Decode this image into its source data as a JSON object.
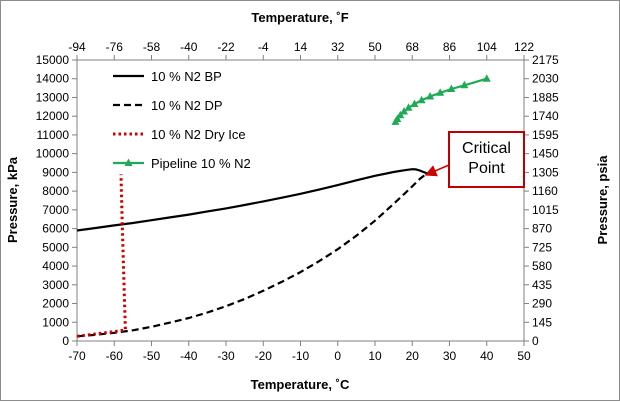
{
  "chart_data": {
    "type": "line",
    "x_bottom": {
      "label": "Temperature, ˚C",
      "range": [
        -70,
        50
      ],
      "ticks": [
        -70,
        -60,
        -50,
        -40,
        -30,
        -20,
        -10,
        0,
        10,
        20,
        30,
        40,
        50
      ]
    },
    "x_top": {
      "label": "Temperature, ˚F",
      "range": [
        -94,
        122
      ],
      "ticks": [
        -94,
        -76,
        -58,
        -40,
        -22,
        -4,
        14,
        32,
        50,
        68,
        86,
        104,
        122
      ]
    },
    "y_left": {
      "label": "Pressure, kPa",
      "range": [
        0,
        15000
      ],
      "ticks": [
        0,
        1000,
        2000,
        3000,
        4000,
        5000,
        6000,
        7000,
        8000,
        9000,
        10000,
        11000,
        12000,
        13000,
        14000,
        15000
      ]
    },
    "y_right": {
      "label": "Pressure, psia",
      "range": [
        0,
        2175
      ],
      "ticks": [
        0,
        145,
        290,
        435,
        580,
        725,
        870,
        1015,
        1160,
        1305,
        1450,
        1595,
        1740,
        1885,
        2030,
        2175
      ]
    },
    "grid": false,
    "legend_position": "top-left",
    "series": [
      {
        "name": "10 % N2 BP",
        "color": "#000000",
        "style": "solid",
        "marker": "none",
        "x": [
          -70,
          -65,
          -60,
          -55,
          -50,
          -45,
          -40,
          -35,
          -30,
          -25,
          -20,
          -15,
          -10,
          -5,
          0,
          5,
          10,
          15,
          18,
          20,
          21,
          22,
          23,
          24
        ],
        "y": [
          5900,
          6030,
          6170,
          6300,
          6450,
          6600,
          6750,
          6920,
          7080,
          7260,
          7450,
          7650,
          7860,
          8080,
          8320,
          8580,
          8820,
          9020,
          9120,
          9170,
          9160,
          9100,
          9020,
          8950
        ]
      },
      {
        "name": "10 % N2 DP",
        "color": "#000000",
        "style": "dashed",
        "marker": "none",
        "x": [
          -70,
          -65,
          -60,
          -55,
          -50,
          -45,
          -40,
          -35,
          -30,
          -25,
          -20,
          -15,
          -10,
          -5,
          0,
          5,
          10,
          15,
          18,
          20,
          22,
          24
        ],
        "y": [
          250,
          330,
          440,
          570,
          760,
          980,
          1230,
          1520,
          1860,
          2240,
          2680,
          3160,
          3680,
          4260,
          4900,
          5620,
          6420,
          7320,
          7880,
          8260,
          8650,
          8950
        ]
      },
      {
        "name": "10 % N2 Dry Ice",
        "color": "#cc0000",
        "style": "dotted",
        "marker": "none",
        "x": [
          -70,
          -64,
          -60,
          -57,
          -57.3,
          -57.6,
          -57.9,
          -58.2
        ],
        "y": [
          250,
          400,
          500,
          600,
          2500,
          4500,
          6500,
          8900
        ]
      },
      {
        "name": "Pipeline 10 % N2",
        "color": "#1faa55",
        "style": "solid",
        "marker": "triangle",
        "x": [
          15.5,
          16,
          16.8,
          17.8,
          19,
          20.6,
          22.5,
          24.8,
          27.5,
          30.5,
          34,
          40
        ],
        "y": [
          11700,
          11850,
          12050,
          12250,
          12450,
          12650,
          12850,
          13050,
          13250,
          13450,
          13650,
          14000
        ]
      }
    ],
    "annotations": [
      {
        "lines": [
          "Critical",
          "Point"
        ],
        "points_to": {
          "x": 23.5,
          "y": 8950
        }
      }
    ]
  }
}
